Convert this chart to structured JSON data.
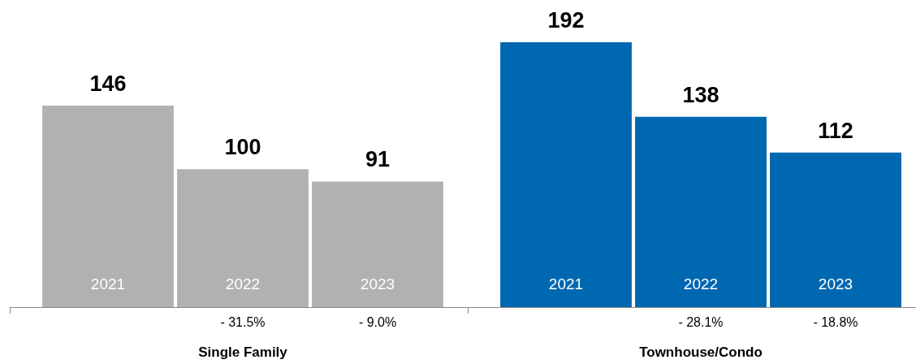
{
  "chart_data": [
    {
      "type": "bar",
      "categories": [
        "2021",
        "2022",
        "2023"
      ],
      "values": [
        146,
        100,
        91
      ],
      "color": "#b1b1b1",
      "data_labels": true,
      "tick_labels": "x",
      "xlabel": "Single Family",
      "annotations": [
        "- 31.5%",
        "- 9.0%"
      ]
    },
    {
      "type": "bar",
      "categories": [
        "2021",
        "2022",
        "2023"
      ],
      "values": [
        192,
        138,
        112
      ],
      "color": "#0067b1",
      "data_labels": true,
      "tick_labels": "x",
      "xlabel": "Townhouse/Condo",
      "annotations": [
        "- 28.1%",
        "- 18.8%"
      ]
    }
  ]
}
